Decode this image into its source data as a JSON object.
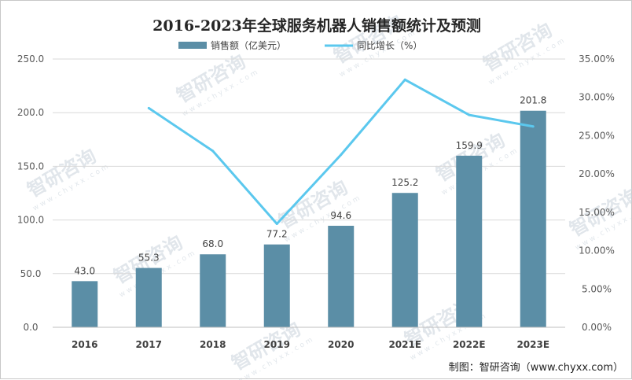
{
  "chart_data": {
    "type": "bar",
    "title": "2016-2023年全球服务机器人销售额统计及预测",
    "categories": [
      "2016",
      "2017",
      "2018",
      "2019",
      "2020",
      "2021E",
      "2022E",
      "2023E"
    ],
    "series": [
      {
        "name": "销售额（亿美元）",
        "type": "bar",
        "axis": "left",
        "color": "#5b8ea6",
        "values": [
          43.0,
          55.3,
          68.0,
          77.2,
          94.6,
          125.2,
          159.9,
          201.8
        ],
        "labels": [
          "43.0",
          "55.3",
          "68.0",
          "77.2",
          "94.6",
          "125.2",
          "159.9",
          "201.8"
        ]
      },
      {
        "name": "同比增长（%）",
        "type": "line",
        "axis": "right",
        "color": "#5bc8ee",
        "values": [
          null,
          28.6,
          23.0,
          13.5,
          22.5,
          32.3,
          27.7,
          26.2
        ]
      }
    ],
    "left_axis": {
      "ylim": [
        0,
        250
      ],
      "ticks": [
        "0.0",
        "50.0",
        "100.0",
        "150.0",
        "200.0",
        "250.0"
      ]
    },
    "right_axis": {
      "ylim": [
        0,
        35
      ],
      "ticks": [
        "0.00%",
        "5.00%",
        "10.00%",
        "15.00%",
        "20.00%",
        "25.00%",
        "30.00%",
        "35.00%"
      ]
    },
    "grid": true,
    "legend_position": "top"
  },
  "source": "制图：智研咨询（www.chyxx.com）",
  "watermark": {
    "text": "智研咨询",
    "sub": "www.chyxx.com"
  }
}
